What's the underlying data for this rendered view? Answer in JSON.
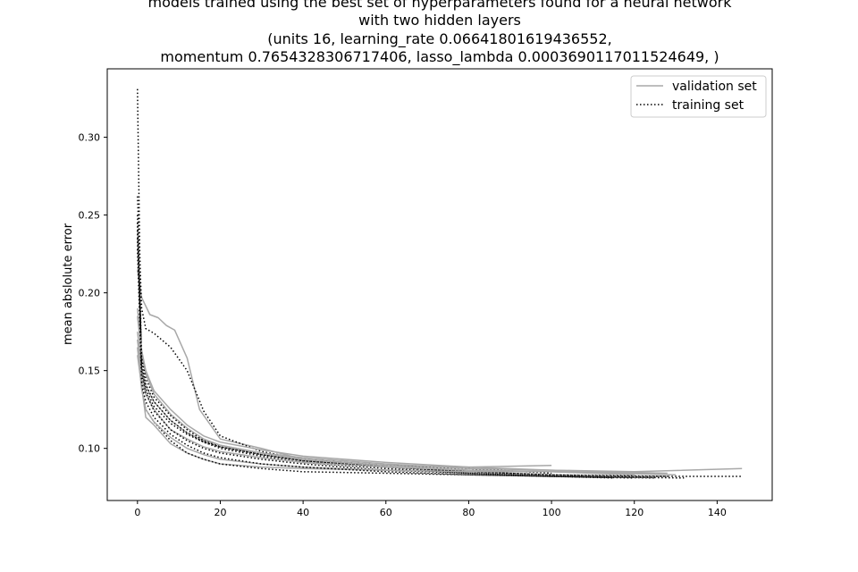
{
  "chart_data": {
    "type": "line",
    "title_lines": [
      "models trained using the best set of hyperparameters found for a neural network",
      "with two hidden layers",
      "(units 16, learning_rate 0.06641801619436552,",
      "momentum 0.7654328306717406, lasso_lambda 0.0003690117011524649, )"
    ],
    "xlabel": "",
    "ylabel": "mean abslolute error",
    "xlim": [
      -7.3,
      153.3
    ],
    "ylim": [
      0.0665,
      0.344
    ],
    "xticks": [
      0,
      20,
      40,
      60,
      80,
      100,
      120,
      140
    ],
    "yticks": [
      0.1,
      0.15,
      0.2,
      0.25,
      0.3
    ],
    "ytick_labels": [
      "0.10",
      "0.15",
      "0.20",
      "0.25",
      "0.30"
    ],
    "grid": false,
    "legend": {
      "position": "top-right",
      "entries": [
        {
          "label": "validation set",
          "style": "solid",
          "color": "#a8a8a8"
        },
        {
          "label": "training set",
          "style": "dotted",
          "color": "#000000"
        }
      ]
    },
    "series": [
      {
        "kind": "validation",
        "x": [
          0,
          1,
          3,
          5,
          7,
          9,
          12,
          15,
          20,
          30,
          40,
          60,
          80,
          100
        ],
        "y": [
          0.215,
          0.197,
          0.186,
          0.184,
          0.179,
          0.176,
          0.158,
          0.125,
          0.106,
          0.1,
          0.093,
          0.089,
          0.088,
          0.089
        ]
      },
      {
        "kind": "training",
        "x": [
          0,
          1,
          2,
          4,
          8,
          12,
          16,
          20,
          30,
          40,
          60,
          80,
          100
        ],
        "y": [
          0.262,
          0.19,
          0.177,
          0.174,
          0.165,
          0.15,
          0.124,
          0.108,
          0.098,
          0.093,
          0.089,
          0.087,
          0.084
        ]
      },
      {
        "kind": "validation",
        "x": [
          0,
          1,
          2,
          4,
          8,
          12,
          16,
          20,
          30,
          40,
          60,
          80,
          100,
          130
        ],
        "y": [
          0.16,
          0.14,
          0.12,
          0.115,
          0.103,
          0.097,
          0.093,
          0.09,
          0.088,
          0.087,
          0.086,
          0.085,
          0.085,
          0.083
        ]
      },
      {
        "kind": "training",
        "x": [
          0,
          1,
          2,
          4,
          8,
          12,
          16,
          20,
          30,
          40,
          60,
          80,
          100,
          132
        ],
        "y": [
          0.331,
          0.14,
          0.125,
          0.117,
          0.105,
          0.097,
          0.093,
          0.09,
          0.087,
          0.085,
          0.084,
          0.083,
          0.082,
          0.081
        ]
      },
      {
        "kind": "validation",
        "x": [
          0,
          1,
          2,
          4,
          8,
          12,
          16,
          20,
          30,
          40,
          60,
          80,
          100,
          120,
          146
        ],
        "y": [
          0.175,
          0.152,
          0.14,
          0.13,
          0.118,
          0.11,
          0.105,
          0.102,
          0.097,
          0.094,
          0.09,
          0.087,
          0.086,
          0.085,
          0.087
        ]
      },
      {
        "kind": "training",
        "x": [
          0,
          1,
          2,
          4,
          8,
          12,
          16,
          20,
          30,
          40,
          60,
          80,
          100,
          120,
          146
        ],
        "y": [
          0.25,
          0.15,
          0.138,
          0.127,
          0.116,
          0.109,
          0.104,
          0.101,
          0.096,
          0.092,
          0.088,
          0.085,
          0.083,
          0.082,
          0.082
        ]
      },
      {
        "kind": "validation",
        "x": [
          0,
          1,
          2,
          4,
          8,
          12,
          16,
          20,
          30,
          40,
          60,
          80,
          100,
          120
        ],
        "y": [
          0.185,
          0.16,
          0.148,
          0.135,
          0.122,
          0.113,
          0.106,
          0.102,
          0.097,
          0.093,
          0.089,
          0.086,
          0.085,
          0.083
        ]
      },
      {
        "kind": "training",
        "x": [
          0,
          1,
          2,
          4,
          8,
          12,
          16,
          20,
          30,
          40,
          60,
          80,
          100,
          120
        ],
        "y": [
          0.245,
          0.155,
          0.141,
          0.13,
          0.118,
          0.11,
          0.104,
          0.1,
          0.095,
          0.091,
          0.087,
          0.084,
          0.082,
          0.081
        ]
      },
      {
        "kind": "validation",
        "x": [
          0,
          1,
          2,
          4,
          8,
          12,
          16,
          20,
          30,
          40,
          60,
          80,
          100,
          128
        ],
        "y": [
          0.19,
          0.163,
          0.15,
          0.137,
          0.125,
          0.115,
          0.108,
          0.104,
          0.099,
          0.095,
          0.091,
          0.088,
          0.086,
          0.084
        ]
      },
      {
        "kind": "training",
        "x": [
          0,
          1,
          2,
          4,
          8,
          12,
          16,
          20,
          30,
          40,
          60,
          80,
          100,
          128
        ],
        "y": [
          0.24,
          0.158,
          0.145,
          0.133,
          0.121,
          0.112,
          0.105,
          0.101,
          0.096,
          0.092,
          0.088,
          0.085,
          0.083,
          0.082
        ]
      },
      {
        "kind": "validation",
        "x": [
          0,
          1,
          2,
          4,
          8,
          12,
          16,
          20,
          30,
          40,
          60,
          80,
          100,
          115
        ],
        "y": [
          0.17,
          0.145,
          0.135,
          0.125,
          0.112,
          0.106,
          0.101,
          0.098,
          0.094,
          0.091,
          0.088,
          0.086,
          0.085,
          0.084
        ]
      },
      {
        "kind": "training",
        "x": [
          0,
          1,
          2,
          4,
          8,
          12,
          16,
          20,
          30,
          40,
          60,
          80,
          100,
          115
        ],
        "y": [
          0.235,
          0.148,
          0.136,
          0.124,
          0.112,
          0.105,
          0.1,
          0.097,
          0.093,
          0.09,
          0.086,
          0.084,
          0.082,
          0.081
        ]
      },
      {
        "kind": "validation",
        "x": [
          0,
          1,
          2,
          4,
          8,
          12,
          16,
          20,
          30,
          40,
          60,
          80,
          100,
          125
        ],
        "y": [
          0.165,
          0.138,
          0.125,
          0.117,
          0.107,
          0.1,
          0.096,
          0.093,
          0.09,
          0.088,
          0.086,
          0.085,
          0.085,
          0.084
        ]
      },
      {
        "kind": "training",
        "x": [
          0,
          1,
          2,
          4,
          8,
          12,
          16,
          20,
          30,
          40,
          60,
          80,
          100,
          125
        ],
        "y": [
          0.228,
          0.142,
          0.13,
          0.12,
          0.109,
          0.102,
          0.097,
          0.094,
          0.09,
          0.088,
          0.085,
          0.083,
          0.082,
          0.081
        ]
      }
    ]
  }
}
